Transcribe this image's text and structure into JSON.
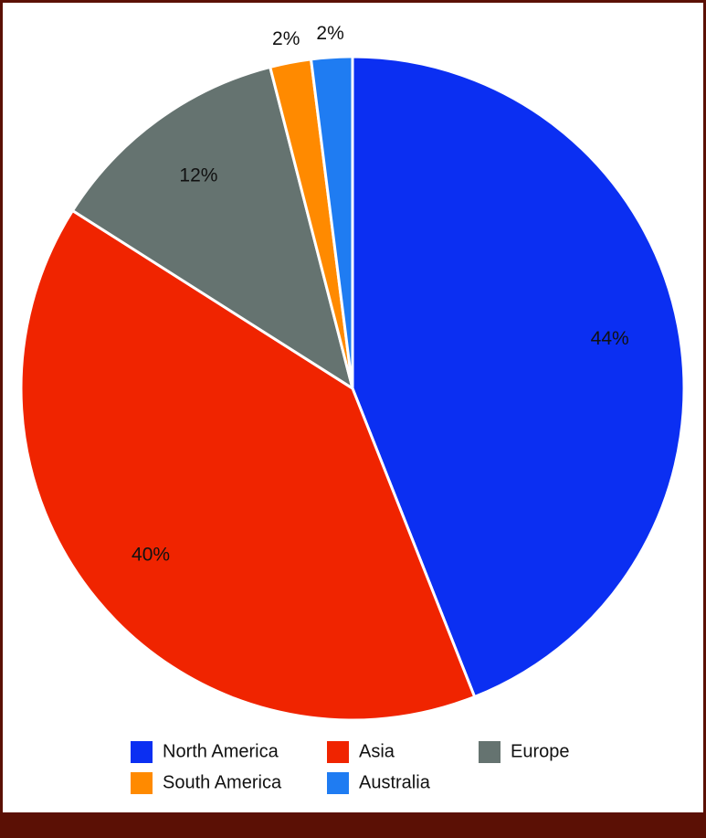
{
  "chart_data": {
    "type": "pie",
    "categories": [
      "North America",
      "Asia",
      "Europe",
      "South America",
      "Australia"
    ],
    "values": [
      44,
      40,
      12,
      2,
      2
    ],
    "value_labels": [
      "44%",
      "40%",
      "12%",
      "2%",
      "2%"
    ],
    "colors": [
      "#0b2ff2",
      "#f02400",
      "#657370",
      "#ff8a00",
      "#1f7cf2"
    ],
    "legend": "bottom"
  }
}
